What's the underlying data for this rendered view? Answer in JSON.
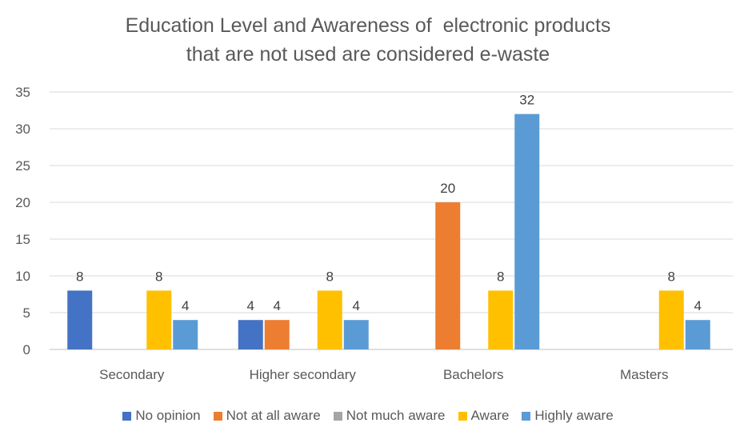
{
  "chart_data": {
    "type": "bar",
    "title_lines": [
      "Education Level and Awareness of  electronic products",
      "that are not used are considered e-waste"
    ],
    "categories": [
      "Secondary",
      "Higher secondary",
      "Bachelors",
      "Masters"
    ],
    "series": [
      {
        "name": "No opinion",
        "color": "#4472C4",
        "values": [
          8,
          4,
          null,
          null
        ]
      },
      {
        "name": "Not at all aware",
        "color": "#ED7D31",
        "values": [
          null,
          4,
          20,
          null
        ]
      },
      {
        "name": "Not much aware",
        "color": "#A5A5A5",
        "values": [
          null,
          null,
          null,
          null
        ]
      },
      {
        "name": "Aware",
        "color": "#FFC000",
        "values": [
          8,
          8,
          8,
          8
        ]
      },
      {
        "name": "Highly aware",
        "color": "#5B9BD5",
        "values": [
          4,
          4,
          32,
          4
        ]
      }
    ],
    "ylim": [
      0,
      35
    ],
    "yticks": [
      0,
      5,
      10,
      15,
      20,
      25,
      30,
      35
    ],
    "grid": true,
    "legend_position": "bottom"
  }
}
